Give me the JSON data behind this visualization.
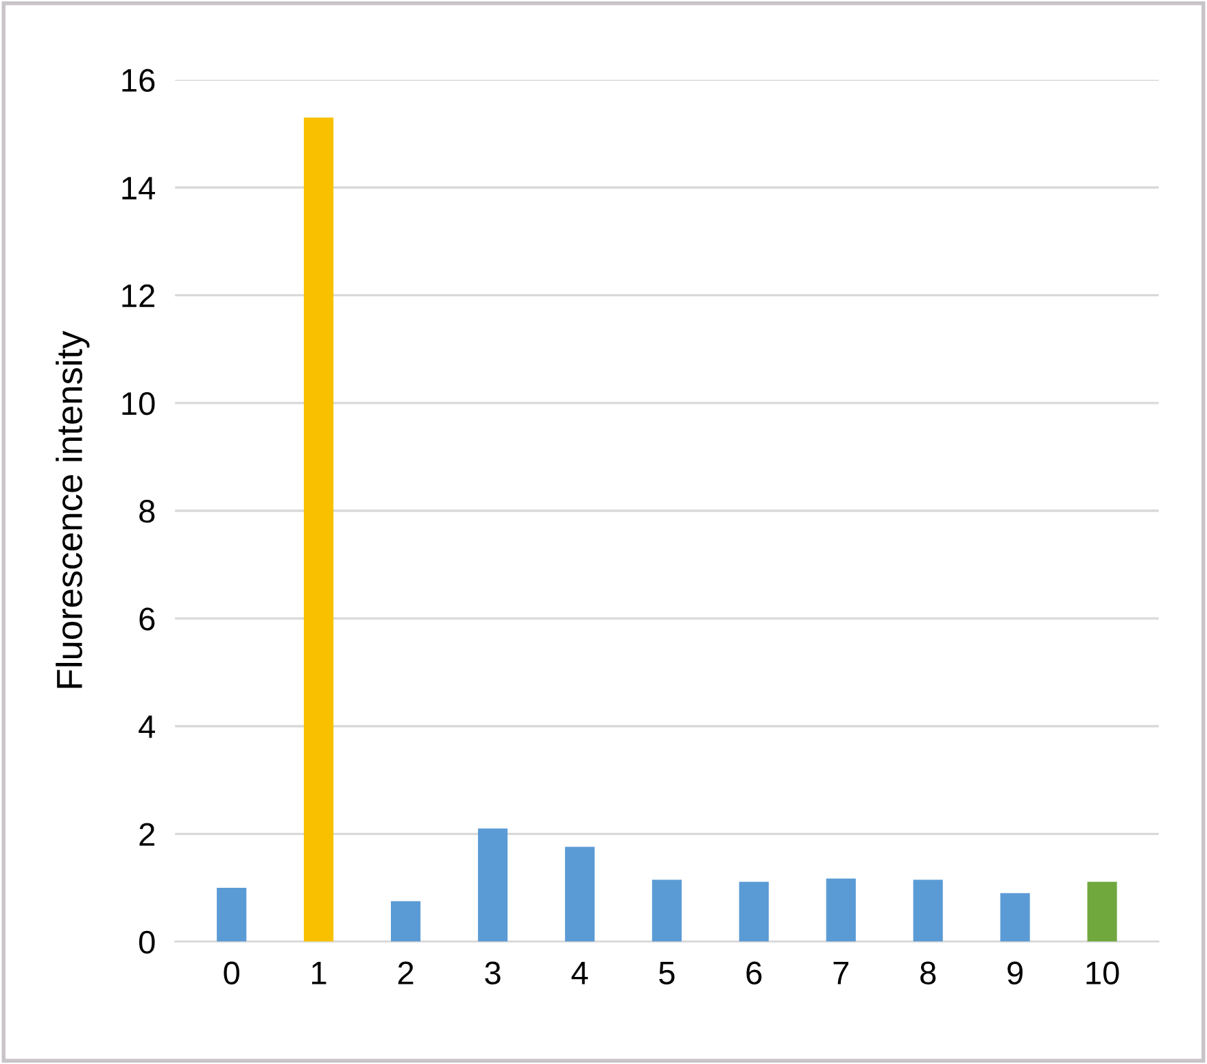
{
  "chart_data": {
    "type": "bar",
    "ylabel": "Fluorescence intensity",
    "categories": [
      "0",
      "1",
      "2",
      "3",
      "4",
      "5",
      "6",
      "7",
      "8",
      "9",
      "10"
    ],
    "values": [
      1.0,
      15.3,
      0.75,
      2.1,
      1.76,
      1.15,
      1.11,
      1.17,
      1.15,
      0.9,
      1.11
    ],
    "colors": [
      "#5b9bd5",
      "#f9c000",
      "#5b9bd5",
      "#5b9bd5",
      "#5b9bd5",
      "#5b9bd5",
      "#5b9bd5",
      "#5b9bd5",
      "#5b9bd5",
      "#5b9bd5",
      "#70a83e"
    ],
    "ylim": [
      0,
      16
    ],
    "yticks": [
      0,
      2,
      4,
      6,
      8,
      10,
      12,
      14,
      16
    ],
    "grid": "y"
  }
}
